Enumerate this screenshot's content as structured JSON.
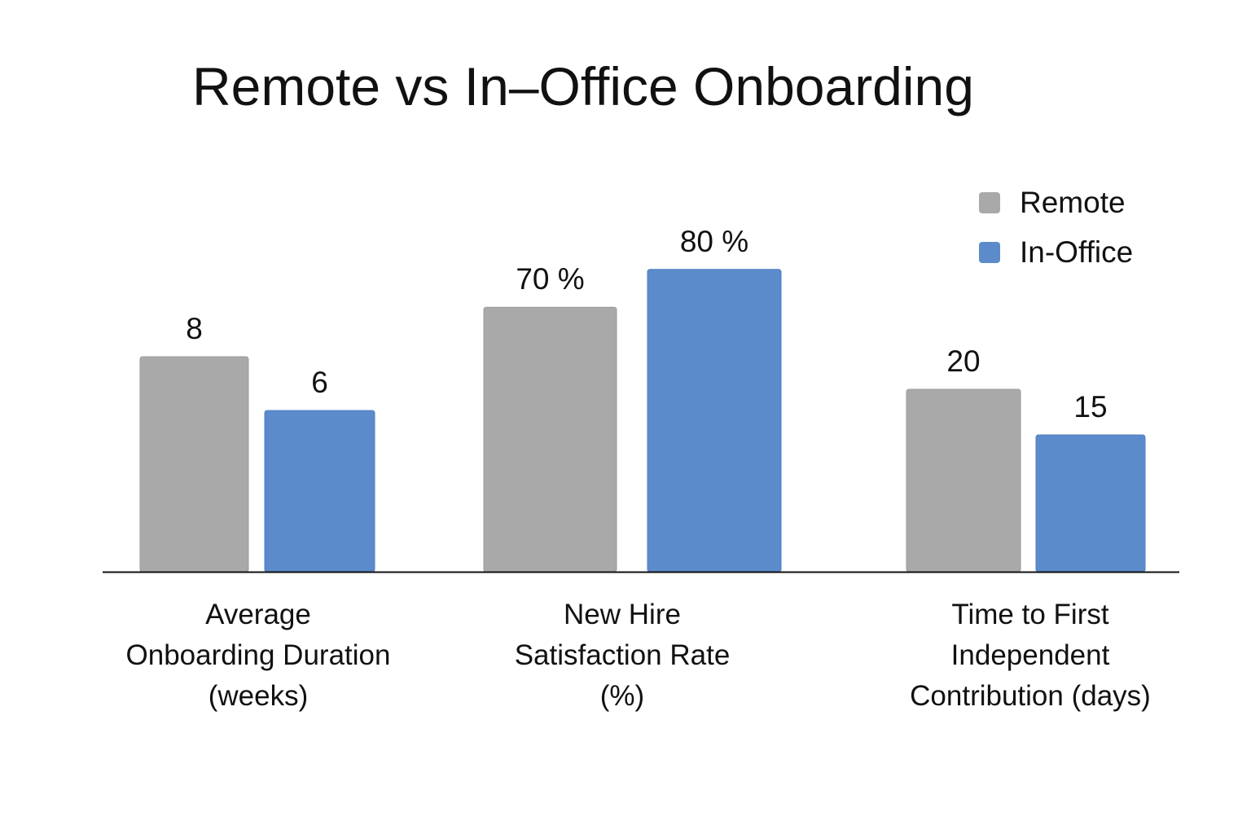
{
  "chart_data": {
    "type": "bar",
    "title": "Remote vs In–Office Onboarding",
    "categories": [
      "Average\nOnboarding Duration\n(weeks)",
      "New Hire\nSatisfaction Rate\n(%)",
      "Time to First\nIndependent\nContribution (days)"
    ],
    "series": [
      {
        "name": "Remote",
        "color": "#a9a9a9",
        "values": [
          8,
          70,
          20
        ],
        "value_labels": [
          "8",
          "70 %",
          "20"
        ]
      },
      {
        "name": "In-Office",
        "color": "#5b8bcb",
        "values": [
          6,
          80,
          15
        ],
        "value_labels": [
          "6",
          "80 %",
          "15"
        ]
      }
    ],
    "legend": "top-right",
    "grid": false
  }
}
